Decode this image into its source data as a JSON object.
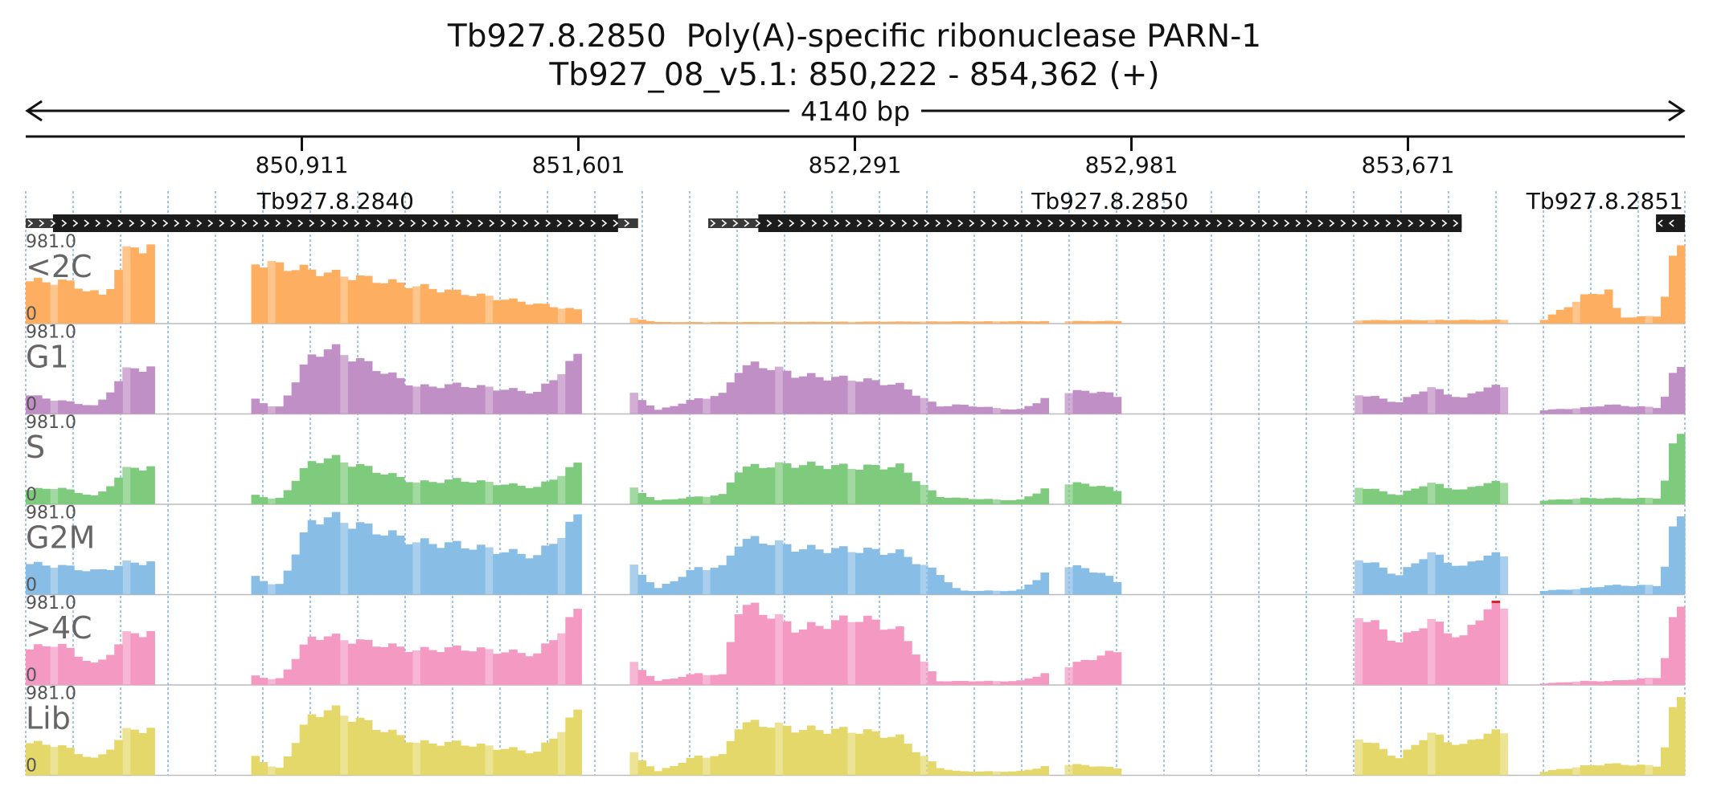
{
  "header": {
    "title": "Tb927.8.2850  Poly(A)-specific ribonuclease PARN-1",
    "subtitle": "Tb927_08_v5.1: 850,222 - 854,362 (+)"
  },
  "chart_data": {
    "type": "area",
    "title": "Tb927.8.2850  Poly(A)-specific ribonuclease PARN-1",
    "subtitle": "Tb927_08_v5.1: 850,222 - 854,362 (+)",
    "span_label": "4140 bp",
    "xlim": [
      850222,
      854362
    ],
    "ticks": [
      {
        "pos": 850911,
        "label": "850,911"
      },
      {
        "pos": 851601,
        "label": "851,601"
      },
      {
        "pos": 852291,
        "label": "852,291"
      },
      {
        "pos": 852981,
        "label": "852,981"
      },
      {
        "pos": 853671,
        "label": "853,671"
      }
    ],
    "genes": [
      {
        "name": "Tb927.8.2840",
        "strand": "+",
        "utr_start": 850222,
        "cds_start": 850290,
        "cds_end": 851700,
        "utr_end": 851750
      },
      {
        "name": "Tb927.8.2850",
        "strand": "+",
        "utr_start": 851925,
        "cds_start": 852050,
        "cds_end": 853805,
        "utr_end": 853805
      },
      {
        "name": "Tb927.8.2851",
        "strand": "-",
        "utr_start": 854290,
        "cds_start": 854290,
        "cds_end": 854362,
        "utr_end": 854362
      }
    ],
    "ylim": [
      0,
      981.0
    ],
    "ymax_label": "981.0",
    "ymin_label": "0",
    "coverage_segments": [
      {
        "from": 850222,
        "to": 850540
      },
      {
        "from": 850780,
        "to": 851600
      },
      {
        "from": 851720,
        "to": 852780
      },
      {
        "from": 852820,
        "to": 852960
      },
      {
        "from": 853530,
        "to": 853910
      },
      {
        "from": 854010,
        "to": 854362
      }
    ],
    "series": [
      {
        "name": "<2C",
        "color": "#fdae61",
        "clipped": true,
        "peaks": [
          [
            850222,
            0.55
          ],
          [
            850320,
            0.55
          ],
          [
            850420,
            0.35
          ],
          [
            850480,
            1.0
          ],
          [
            850540,
            1.0
          ],
          [
            851800,
            0.02
          ],
          [
            852000,
            0.02
          ],
          [
            854010,
            0.05
          ],
          [
            854110,
            0.35
          ],
          [
            854170,
            0.45
          ],
          [
            854200,
            0.08
          ],
          [
            854300,
            0.1
          ],
          [
            854340,
            1.0
          ],
          [
            854362,
            1.0
          ]
        ]
      },
      {
        "name": "G1",
        "color": "#c08fc5",
        "clipped": false,
        "peaks": [
          [
            850222,
            0.25
          ],
          [
            850300,
            0.18
          ],
          [
            850400,
            0.1
          ],
          [
            850480,
            0.6
          ],
          [
            850540,
            0.6
          ],
          [
            850780,
            0.25
          ],
          [
            850850,
            0.05
          ],
          [
            850940,
            0.8
          ],
          [
            850990,
            0.85
          ],
          [
            851200,
            0.35
          ],
          [
            851300,
            0.38
          ],
          [
            851500,
            0.28
          ],
          [
            851600,
            0.75
          ],
          [
            851720,
            0.32
          ],
          [
            851800,
            0.05
          ],
          [
            851900,
            0.2
          ],
          [
            851960,
            0.25
          ],
          [
            852000,
            0.58
          ],
          [
            852050,
            0.65
          ],
          [
            852150,
            0.5
          ],
          [
            852300,
            0.45
          ],
          [
            852400,
            0.38
          ],
          [
            852500,
            0.1
          ],
          [
            852550,
            0.12
          ],
          [
            852700,
            0.05
          ],
          [
            852800,
            0.28
          ],
          [
            852900,
            0.3
          ],
          [
            852960,
            0.2
          ],
          [
            853530,
            0.28
          ],
          [
            853650,
            0.15
          ],
          [
            853720,
            0.35
          ],
          [
            853810,
            0.2
          ],
          [
            853860,
            0.35
          ],
          [
            853910,
            0.35
          ],
          [
            854010,
            0.05
          ],
          [
            854110,
            0.08
          ],
          [
            854170,
            0.12
          ],
          [
            854300,
            0.08
          ],
          [
            854340,
            0.6
          ],
          [
            854362,
            0.6
          ]
        ]
      },
      {
        "name": "S",
        "color": "#7ecb7d",
        "clipped": false,
        "peaks": [
          [
            850222,
            0.18
          ],
          [
            850300,
            0.22
          ],
          [
            850400,
            0.1
          ],
          [
            850480,
            0.48
          ],
          [
            850540,
            0.48
          ],
          [
            850780,
            0.15
          ],
          [
            850850,
            0.05
          ],
          [
            850940,
            0.58
          ],
          [
            850990,
            0.6
          ],
          [
            851200,
            0.28
          ],
          [
            851300,
            0.32
          ],
          [
            851500,
            0.22
          ],
          [
            851600,
            0.52
          ],
          [
            851720,
            0.25
          ],
          [
            851800,
            0.05
          ],
          [
            851900,
            0.1
          ],
          [
            851960,
            0.12
          ],
          [
            852000,
            0.45
          ],
          [
            852050,
            0.5
          ],
          [
            852150,
            0.52
          ],
          [
            852300,
            0.48
          ],
          [
            852400,
            0.5
          ],
          [
            852500,
            0.1
          ],
          [
            852550,
            0.08
          ],
          [
            852700,
            0.05
          ],
          [
            852800,
            0.28
          ],
          [
            852900,
            0.25
          ],
          [
            852960,
            0.15
          ],
          [
            853530,
            0.25
          ],
          [
            853650,
            0.12
          ],
          [
            853720,
            0.28
          ],
          [
            853810,
            0.18
          ],
          [
            853860,
            0.28
          ],
          [
            853910,
            0.28
          ],
          [
            854010,
            0.05
          ],
          [
            854110,
            0.08
          ],
          [
            854170,
            0.08
          ],
          [
            854300,
            0.08
          ],
          [
            854340,
            0.9
          ],
          [
            854362,
            0.9
          ]
        ]
      },
      {
        "name": "G2M",
        "color": "#88bde6",
        "clipped": true,
        "peaks": [
          [
            850222,
            0.4
          ],
          [
            850300,
            0.38
          ],
          [
            850400,
            0.3
          ],
          [
            850480,
            0.42
          ],
          [
            850540,
            0.42
          ],
          [
            850780,
            0.3
          ],
          [
            850850,
            0.08
          ],
          [
            850940,
            1.0
          ],
          [
            850990,
            1.0
          ],
          [
            851200,
            0.68
          ],
          [
            851300,
            0.65
          ],
          [
            851500,
            0.5
          ],
          [
            851600,
            1.0
          ],
          [
            851720,
            0.45
          ],
          [
            851800,
            0.08
          ],
          [
            851900,
            0.35
          ],
          [
            851960,
            0.35
          ],
          [
            852000,
            0.68
          ],
          [
            852050,
            0.72
          ],
          [
            852150,
            0.6
          ],
          [
            852300,
            0.58
          ],
          [
            852400,
            0.55
          ],
          [
            852500,
            0.28
          ],
          [
            852550,
            0.05
          ],
          [
            852700,
            0.05
          ],
          [
            852800,
            0.4
          ],
          [
            852900,
            0.3
          ],
          [
            852960,
            0.12
          ],
          [
            853530,
            0.52
          ],
          [
            853650,
            0.25
          ],
          [
            853720,
            0.55
          ],
          [
            853810,
            0.35
          ],
          [
            853860,
            0.52
          ],
          [
            853910,
            0.5
          ],
          [
            854010,
            0.05
          ],
          [
            854110,
            0.08
          ],
          [
            854170,
            0.12
          ],
          [
            854300,
            0.12
          ],
          [
            854340,
            1.0
          ],
          [
            854362,
            1.0
          ]
        ]
      },
      {
        "name": ">4C",
        "color": "#f49ac2",
        "clipped": true,
        "peaks": [
          [
            850222,
            0.45
          ],
          [
            850300,
            0.55
          ],
          [
            850400,
            0.25
          ],
          [
            850480,
            0.68
          ],
          [
            850540,
            0.68
          ],
          [
            850780,
            0.15
          ],
          [
            850850,
            0.05
          ],
          [
            850940,
            0.65
          ],
          [
            850990,
            0.62
          ],
          [
            851200,
            0.45
          ],
          [
            851300,
            0.48
          ],
          [
            851500,
            0.4
          ],
          [
            851600,
            0.95
          ],
          [
            851720,
            0.35
          ],
          [
            851800,
            0.05
          ],
          [
            851900,
            0.15
          ],
          [
            851960,
            0.12
          ],
          [
            852000,
            1.0
          ],
          [
            852050,
            1.0
          ],
          [
            852150,
            0.72
          ],
          [
            852300,
            0.88
          ],
          [
            852400,
            0.72
          ],
          [
            852500,
            0.05
          ],
          [
            852550,
            0.05
          ],
          [
            852700,
            0.05
          ],
          [
            852800,
            0.2
          ],
          [
            852900,
            0.38
          ],
          [
            852960,
            0.45
          ],
          [
            853530,
            1.0
          ],
          [
            853650,
            0.55
          ],
          [
            853720,
            0.85
          ],
          [
            853810,
            0.6
          ],
          [
            853860,
            1.0
          ],
          [
            853910,
            1.0
          ],
          [
            854010,
            0.02
          ],
          [
            854110,
            0.05
          ],
          [
            854170,
            0.05
          ],
          [
            854300,
            0.1
          ],
          [
            854340,
            1.0
          ],
          [
            854362,
            1.0
          ]
        ]
      },
      {
        "name": "Lib",
        "color": "#e5d86b",
        "clipped": true,
        "peaks": [
          [
            850222,
            0.42
          ],
          [
            850300,
            0.4
          ],
          [
            850400,
            0.2
          ],
          [
            850480,
            0.6
          ],
          [
            850540,
            0.6
          ],
          [
            850780,
            0.32
          ],
          [
            850850,
            0.05
          ],
          [
            850940,
            0.82
          ],
          [
            850990,
            0.85
          ],
          [
            851200,
            0.42
          ],
          [
            851300,
            0.42
          ],
          [
            851500,
            0.3
          ],
          [
            851600,
            0.82
          ],
          [
            851720,
            0.35
          ],
          [
            851800,
            0.05
          ],
          [
            851900,
            0.25
          ],
          [
            851960,
            0.25
          ],
          [
            852000,
            0.65
          ],
          [
            852050,
            0.68
          ],
          [
            852150,
            0.6
          ],
          [
            852300,
            0.58
          ],
          [
            852400,
            0.5
          ],
          [
            852500,
            0.1
          ],
          [
            852550,
            0.05
          ],
          [
            852700,
            0.05
          ],
          [
            852800,
            0.15
          ],
          [
            852900,
            0.12
          ],
          [
            852960,
            0.08
          ],
          [
            853530,
            0.55
          ],
          [
            853650,
            0.22
          ],
          [
            853720,
            0.55
          ],
          [
            853810,
            0.38
          ],
          [
            853860,
            0.55
          ],
          [
            853910,
            0.55
          ],
          [
            854010,
            0.05
          ],
          [
            854110,
            0.12
          ],
          [
            854170,
            0.15
          ],
          [
            854300,
            0.12
          ],
          [
            854340,
            1.0
          ],
          [
            854362,
            1.0
          ]
        ]
      }
    ]
  }
}
